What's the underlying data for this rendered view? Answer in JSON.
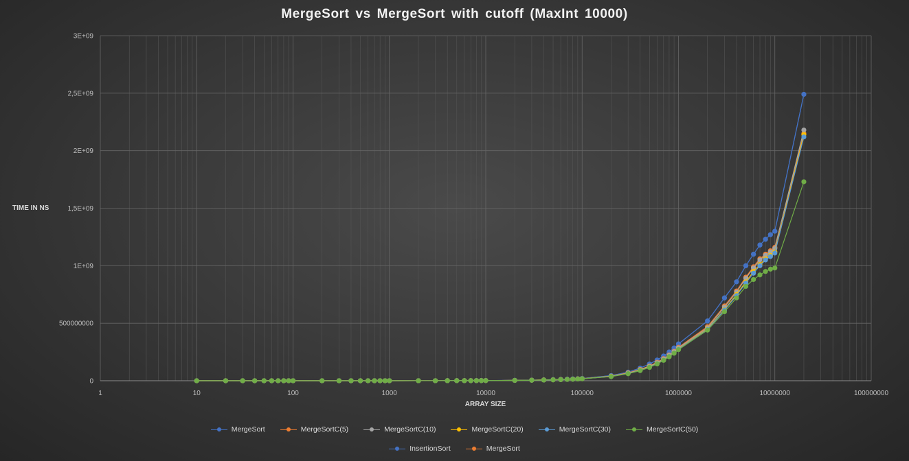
{
  "chart_data": {
    "type": "scatter",
    "title": "MergeSort  vs MergeSort  with  cutoff  (MaxInt  10000)",
    "xlabel": "ARRAY SIZE",
    "ylabel": "TIME IN NS",
    "x_scale": "log",
    "xlim": [
      1,
      100000000
    ],
    "ylim": [
      0,
      3000000000
    ],
    "x_ticks": [
      1,
      10,
      100,
      1000,
      10000,
      100000,
      1000000,
      10000000,
      100000000
    ],
    "x_tick_labels": [
      "1",
      "10",
      "100",
      "1000",
      "10000",
      "100000",
      "1000000",
      "10000000",
      "100000000"
    ],
    "y_ticks": [
      0,
      500000000,
      1000000000,
      1500000000,
      2000000000,
      2500000000,
      3000000000
    ],
    "y_tick_labels": [
      "0",
      "500000000",
      "1E+09",
      "1,5E+09",
      "2E+09",
      "2,5E+09",
      "3E+09"
    ],
    "grid": "major and minor vertical, major horizontal",
    "legend_position": "bottom",
    "x": [
      10,
      20,
      30,
      40,
      50,
      60,
      70,
      80,
      90,
      100,
      200,
      300,
      400,
      500,
      600,
      700,
      800,
      900,
      1000,
      2000,
      3000,
      4000,
      5000,
      6000,
      7000,
      8000,
      9000,
      10000,
      20000,
      30000,
      40000,
      50000,
      60000,
      70000,
      80000,
      90000,
      100000,
      200000,
      300000,
      400000,
      500000,
      600000,
      700000,
      800000,
      900000,
      1000000,
      2000000,
      3000000,
      4000000,
      5000000,
      6000000,
      7000000,
      8000000,
      9000000,
      10000000,
      20000000
    ],
    "series": [
      {
        "name": "MergeSort",
        "color": "#4472c4",
        "values": [
          1000,
          2000,
          3000,
          5000,
          6000,
          7000,
          9000,
          10000,
          12000,
          13000,
          30000,
          45000,
          60000,
          75000,
          90000,
          105000,
          120000,
          140000,
          155000,
          320000,
          500000,
          700000,
          850000,
          1000000,
          1200000,
          1400000,
          1600000,
          1800000,
          3500000,
          5500000,
          7500000,
          9500000,
          11500000,
          13500000,
          15500000,
          17500000,
          19500000,
          45000000,
          75000000,
          110000000,
          145000000,
          180000000,
          215000000,
          250000000,
          285000000,
          320000000,
          520000000,
          720000000,
          860000000,
          1000000000,
          1100000000,
          1180000000,
          1230000000,
          1270000000,
          1300000000,
          2490000000
        ]
      },
      {
        "name": "MergeSortC(5)",
        "color": "#ed7d31",
        "values": [
          1000,
          2000,
          3000,
          4000,
          5000,
          6000,
          7000,
          8000,
          9000,
          11000,
          25000,
          40000,
          55000,
          70000,
          82000,
          95000,
          110000,
          125000,
          140000,
          290000,
          450000,
          630000,
          780000,
          920000,
          1080000,
          1250000,
          1420000,
          1600000,
          3200000,
          5000000,
          7000000,
          8800000,
          10600000,
          12400000,
          14200000,
          16000000,
          18000000,
          40000000,
          68000000,
          98000000,
          128000000,
          160000000,
          192000000,
          224000000,
          256000000,
          290000000,
          470000000,
          650000000,
          780000000,
          900000000,
          990000000,
          1060000000,
          1100000000,
          1130000000,
          1160000000,
          2150000000
        ]
      },
      {
        "name": "MergeSortC(10)",
        "color": "#a5a5a5",
        "values": [
          1000,
          2000,
          3000,
          4000,
          5000,
          6000,
          7000,
          8000,
          9000,
          10000,
          24000,
          38000,
          52000,
          66000,
          78000,
          92000,
          106000,
          120000,
          135000,
          280000,
          440000,
          610000,
          760000,
          900000,
          1050000,
          1220000,
          1390000,
          1560000,
          3100000,
          4900000,
          6800000,
          8600000,
          10400000,
          12200000,
          14000000,
          15800000,
          17600000,
          39000000,
          66000000,
          95000000,
          125000000,
          156000000,
          188000000,
          220000000,
          252000000,
          285000000,
          460000000,
          640000000,
          770000000,
          890000000,
          980000000,
          1050000000,
          1090000000,
          1120000000,
          1150000000,
          2180000000
        ]
      },
      {
        "name": "MergeSortC(20)",
        "color": "#ffc000",
        "values": [
          1000,
          2000,
          3000,
          4000,
          5000,
          5500,
          6500,
          7500,
          8500,
          9500,
          22000,
          35000,
          48000,
          62000,
          74000,
          87000,
          100000,
          113000,
          126000,
          265000,
          420000,
          585000,
          730000,
          870000,
          1020000,
          1180000,
          1340000,
          1500000,
          3000000,
          4700000,
          6500000,
          8300000,
          10100000,
          11900000,
          13700000,
          15500000,
          17300000,
          38000000,
          64000000,
          92000000,
          121000000,
          151000000,
          182000000,
          213000000,
          244000000,
          276000000,
          450000000,
          620000000,
          750000000,
          860000000,
          950000000,
          1010000000,
          1060000000,
          1090000000,
          1120000000,
          2140000000
        ]
      },
      {
        "name": "MergeSortC(30)",
        "color": "#5b9bd5",
        "values": [
          1000,
          2000,
          3000,
          4000,
          4500,
          5500,
          6500,
          7500,
          8500,
          9500,
          21000,
          34000,
          47000,
          60000,
          72000,
          85000,
          98000,
          111000,
          124000,
          260000,
          410000,
          575000,
          720000,
          860000,
          1010000,
          1160000,
          1320000,
          1480000,
          2950000,
          4600000,
          6400000,
          8200000,
          10000000,
          11800000,
          13600000,
          15400000,
          17200000,
          37000000,
          63000000,
          90000000,
          119000000,
          149000000,
          180000000,
          211000000,
          242000000,
          274000000,
          445000000,
          615000000,
          740000000,
          850000000,
          935000000,
          1000000000,
          1050000000,
          1080000000,
          1110000000,
          2120000000
        ]
      },
      {
        "name": "MergeSortC(50)",
        "color": "#70ad47",
        "values": [
          1000,
          2000,
          3000,
          4000,
          4500,
          5000,
          6000,
          7000,
          8000,
          9000,
          20000,
          32000,
          44000,
          57000,
          69000,
          81000,
          94000,
          106000,
          118000,
          250000,
          395000,
          555000,
          700000,
          835000,
          980000,
          1130000,
          1290000,
          1450000,
          2900000,
          4500000,
          6300000,
          8000000,
          9800000,
          11600000,
          13400000,
          15200000,
          17000000,
          36000000,
          61000000,
          88000000,
          116000000,
          146000000,
          177000000,
          208000000,
          239000000,
          270000000,
          440000000,
          600000000,
          720000000,
          820000000,
          880000000,
          920000000,
          950000000,
          970000000,
          980000000,
          1730000000
        ]
      },
      {
        "name": "InsertionSort",
        "color": "#4472c4",
        "values": [
          1000,
          2000,
          3000,
          5000,
          6000,
          7000,
          9000,
          10000,
          12000,
          13000,
          30000,
          45000,
          60000,
          75000,
          90000,
          105000,
          120000,
          140000,
          155000,
          320000,
          500000,
          700000,
          850000,
          1000000,
          1200000,
          1400000,
          1600000,
          1800000,
          3500000,
          5500000,
          7500000,
          9500000,
          11500000,
          13500000,
          15500000,
          17500000,
          19500000,
          45000000,
          75000000,
          110000000,
          145000000,
          180000000,
          215000000,
          250000000,
          285000000,
          320000000,
          520000000,
          720000000,
          860000000,
          1000000000,
          1100000000,
          1180000000,
          1230000000,
          1270000000,
          1300000000,
          2490000000
        ]
      },
      {
        "name": "MergeSort",
        "color": "#ed7d31",
        "values": [
          1000,
          2000,
          3000,
          4000,
          5000,
          6000,
          7000,
          8000,
          9000,
          11000,
          25000,
          40000,
          55000,
          70000,
          82000,
          95000,
          110000,
          125000,
          140000,
          290000,
          450000,
          630000,
          780000,
          920000,
          1080000,
          1250000,
          1420000,
          1600000,
          3200000,
          5000000,
          7000000,
          8800000,
          10600000,
          12400000,
          14200000,
          16000000,
          18000000,
          40000000,
          68000000,
          98000000,
          128000000,
          160000000,
          192000000,
          224000000,
          256000000,
          290000000,
          470000000,
          650000000,
          780000000,
          900000000,
          990000000,
          1060000000,
          1100000000,
          1130000000,
          1160000000,
          2150000000
        ]
      }
    ]
  }
}
